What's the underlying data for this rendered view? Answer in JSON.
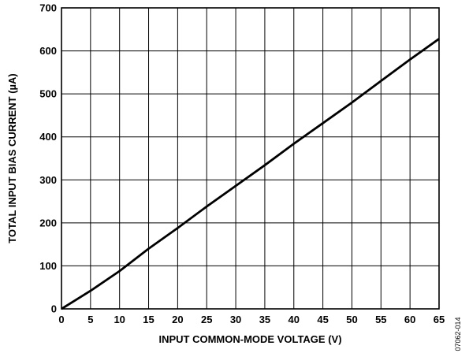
{
  "chart_data": {
    "type": "line",
    "xlabel": "INPUT COMMON-MODE VOLTAGE (V)",
    "ylabel": "TOTAL INPUT BIAS CURRENT (µA)",
    "xlim": [
      0,
      65
    ],
    "ylim": [
      0,
      700
    ],
    "x_ticks": [
      0,
      5,
      10,
      15,
      20,
      25,
      30,
      35,
      40,
      45,
      50,
      55,
      60,
      65
    ],
    "y_ticks": [
      0,
      100,
      200,
      300,
      400,
      500,
      600,
      700
    ],
    "grid": true,
    "series": [
      {
        "x": [
          0,
          5,
          10,
          15,
          20,
          25,
          30,
          35,
          40,
          45,
          50,
          55,
          60,
          65
        ],
        "y": [
          0,
          42,
          88,
          140,
          188,
          238,
          286,
          334,
          384,
          432,
          480,
          530,
          580,
          628
        ]
      }
    ],
    "figure_id": "07062-014",
    "colors": {
      "line": "#000000",
      "grid": "#000000"
    }
  }
}
